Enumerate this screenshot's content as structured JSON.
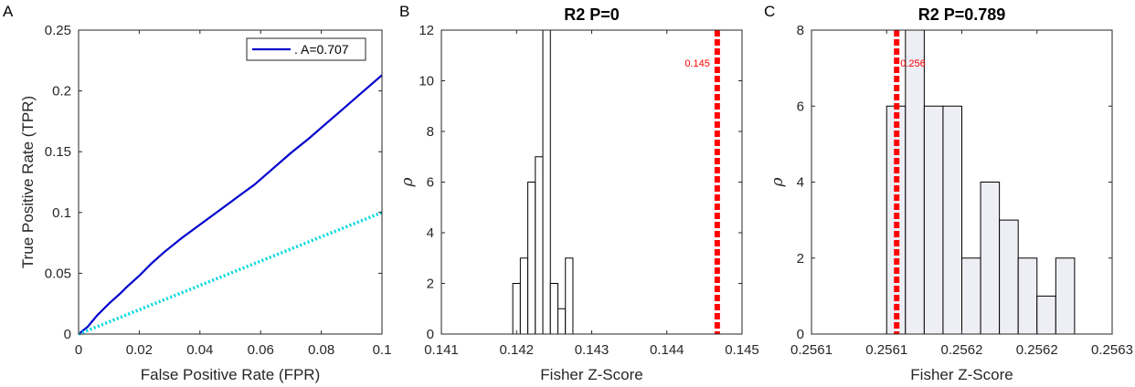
{
  "chart_data": [
    {
      "panel_label": "A",
      "type": "line",
      "title": "",
      "xlabel": "False Positive Rate (FPR)",
      "ylabel": "True Positive Rate (TPR)",
      "xlim": [
        0,
        0.1
      ],
      "ylim": [
        0,
        0.25
      ],
      "xticks": [
        0,
        0.02,
        0.04,
        0.06,
        0.08,
        0.1
      ],
      "xtick_labels": [
        "0",
        "0.02",
        "0.04",
        "0.06",
        "0.08",
        "0.1"
      ],
      "yticks": [
        0,
        0.05,
        0.1,
        0.15,
        0.2,
        0.25
      ],
      "ytick_labels": [
        "0",
        "0.05",
        "0.1",
        "0.15",
        "0.2",
        "0.25"
      ],
      "legend_position": "top-right",
      "series": [
        {
          "name": ". A=0.707",
          "color": "#0000cc",
          "style": "solid",
          "x": [
            0,
            0.003,
            0.006,
            0.01,
            0.014,
            0.016,
            0.02,
            0.024,
            0.028,
            0.034,
            0.04,
            0.046,
            0.052,
            0.058,
            0.064,
            0.07,
            0.076,
            0.082,
            0.088,
            0.094,
            0.1
          ],
          "y": [
            0,
            0.006,
            0.015,
            0.025,
            0.034,
            0.039,
            0.048,
            0.058,
            0.067,
            0.079,
            0.09,
            0.101,
            0.112,
            0.123,
            0.136,
            0.149,
            0.161,
            0.174,
            0.187,
            0.2,
            0.213
          ]
        },
        {
          "color": "#00d8e0",
          "style": "dotted",
          "x": [
            0,
            0.1
          ],
          "y": [
            0,
            0.1
          ]
        }
      ]
    },
    {
      "panel_label": "B",
      "type": "bar",
      "title": "R2 P=0",
      "xlabel": "Fisher Z-Score",
      "ylabel": "ρ",
      "xlim": [
        0.141,
        0.145
      ],
      "ylim": [
        0,
        12
      ],
      "xticks": [
        0.141,
        0.142,
        0.143,
        0.144,
        0.145
      ],
      "xtick_labels": [
        "0.141",
        "0.142",
        "0.143",
        "0.144",
        "0.145"
      ],
      "yticks": [
        0,
        2,
        4,
        6,
        8,
        10,
        12
      ],
      "ytick_labels": [
        "0",
        "2",
        "4",
        "6",
        "8",
        "10",
        "12"
      ],
      "bin_edges": [
        0.14195,
        0.14205,
        0.14215,
        0.14225,
        0.14235,
        0.14245,
        0.14255,
        0.14265
      ],
      "values": [
        2,
        3,
        6,
        7,
        12,
        2,
        1,
        3
      ],
      "bin_edges_all": [
        0.14195,
        0.14205,
        0.14215,
        0.14225,
        0.14235,
        0.14245,
        0.14255,
        0.14265,
        0.14275
      ],
      "bar_color": "#ffffff",
      "marker_line": {
        "x": 0.14467,
        "label": "0.145",
        "color": "#ff0000"
      }
    },
    {
      "panel_label": "C",
      "type": "bar",
      "title": "R2 P=0.789",
      "xlabel": "Fisher Z-Score",
      "ylabel": "ρ",
      "xlim": [
        0.25606,
        0.2563
      ],
      "ylim": [
        0,
        8
      ],
      "xtick_values": [
        0.25606,
        0.25612,
        0.25618,
        0.25624,
        0.2563
      ],
      "xtick_labels": [
        "0.2561",
        "0.2561",
        "0.2562",
        "0.2562",
        "0.2563"
      ],
      "yticks": [
        0,
        2,
        4,
        6,
        8
      ],
      "ytick_labels": [
        "0",
        "2",
        "4",
        "6",
        "8"
      ],
      "bin_edges_all": [
        0.25612,
        0.256135,
        0.25615,
        0.256165,
        0.25618,
        0.256195,
        0.25621,
        0.256225,
        0.25624,
        0.256255,
        0.25627,
        0.256285,
        0.2563
      ],
      "values": [
        6,
        8,
        6,
        6,
        2,
        4,
        3,
        2,
        1,
        2,
        0,
        0
      ],
      "bar_color": "#eeeef5",
      "marker_line": {
        "x": 0.256128,
        "label": "0.256",
        "color": "#ff0000"
      }
    }
  ]
}
